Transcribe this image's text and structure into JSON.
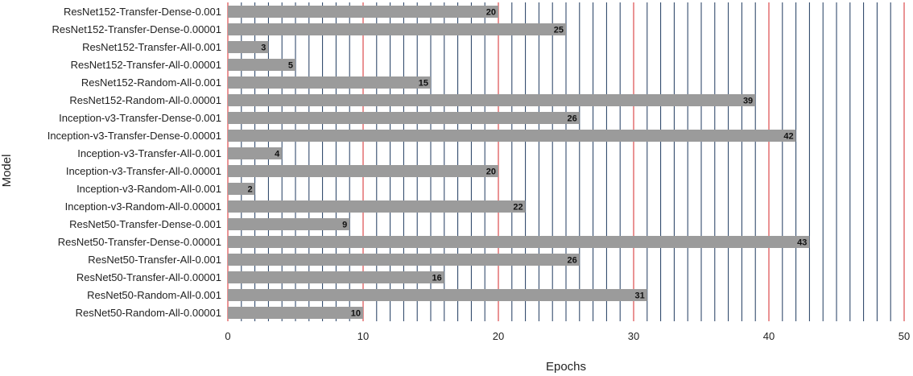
{
  "chart_data": {
    "type": "bar",
    "orientation": "horizontal",
    "xlabel": "Epochs",
    "ylabel": "Model",
    "xlim": [
      0,
      50
    ],
    "x_ticks": [
      0,
      10,
      20,
      30,
      40,
      50
    ],
    "grid": "vertical lines every 1 epoch; red at multiples of 10, navy otherwise",
    "categories": [
      "ResNet152-Transfer-Dense-0.001",
      "ResNet152-Transfer-Dense-0.00001",
      "ResNet152-Transfer-All-0.001",
      "ResNet152-Transfer-All-0.00001",
      "ResNet152-Random-All-0.001",
      "ResNet152-Random-All-0.00001",
      "Inception-v3-Transfer-Dense-0.001",
      "Inception-v3-Transfer-Dense-0.00001",
      "Inception-v3-Transfer-All-0.001",
      "Inception-v3-Transfer-All-0.00001",
      "Inception-v3-Random-All-0.001",
      "Inception-v3-Random-All-0.00001",
      "ResNet50-Transfer-Dense-0.001",
      "ResNet50-Transfer-Dense-0.00001",
      "ResNet50-Transfer-All-0.001",
      "ResNet50-Transfer-All-0.00001",
      "ResNet50-Random-All-0.001",
      "ResNet50-Random-All-0.00001"
    ],
    "values": [
      20,
      25,
      3,
      5,
      15,
      39,
      26,
      42,
      4,
      20,
      2,
      22,
      9,
      43,
      26,
      16,
      31,
      10
    ],
    "colors": {
      "bar": "#9b9b9b",
      "grid_major": "#d62728",
      "grid_minor": "#1f3a5f"
    }
  }
}
